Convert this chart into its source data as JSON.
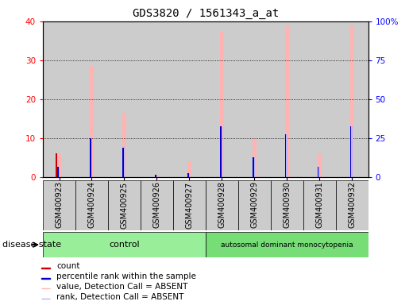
{
  "title": "GDS3820 / 1561343_a_at",
  "samples": [
    "GSM400923",
    "GSM400924",
    "GSM400925",
    "GSM400926",
    "GSM400927",
    "GSM400928",
    "GSM400929",
    "GSM400930",
    "GSM400931",
    "GSM400932"
  ],
  "count_values": [
    6,
    0,
    0,
    0,
    0,
    0,
    0,
    0,
    0,
    0
  ],
  "percentile_rank_values": [
    2.5,
    10,
    7.5,
    0.5,
    1,
    13,
    5,
    11,
    2.5,
    13
  ],
  "value_absent": [
    6,
    28.5,
    16.5,
    0.5,
    4,
    37.5,
    10,
    39,
    6,
    39
  ],
  "rank_absent": [
    2.5,
    10,
    8,
    0.5,
    1,
    13,
    5,
    11,
    2.5,
    13
  ],
  "groups": {
    "control": [
      0,
      1,
      2,
      3,
      4
    ],
    "autosomal dominant monocytopenia": [
      5,
      6,
      7,
      8,
      9
    ]
  },
  "ylim_left": [
    0,
    40
  ],
  "ylim_right": [
    0,
    100
  ],
  "yticks_left": [
    0,
    10,
    20,
    30,
    40
  ],
  "yticks_right": [
    0,
    25,
    50,
    75,
    100
  ],
  "yticklabels_right": [
    "0",
    "25",
    "50",
    "75",
    "100%"
  ],
  "color_count": "#cc0000",
  "color_percentile": "#0000cc",
  "color_value_absent": "#ffb3b3",
  "color_rank_absent": "#b3b3ff",
  "color_control_bg": "#99ee99",
  "color_disease_bg": "#77dd77",
  "color_sample_bg": "#cccccc",
  "legend_items": [
    {
      "label": "count",
      "color": "#cc0000"
    },
    {
      "label": "percentile rank within the sample",
      "color": "#0000cc"
    },
    {
      "label": "value, Detection Call = ABSENT",
      "color": "#ffb3b3"
    },
    {
      "label": "rank, Detection Call = ABSENT",
      "color": "#b3b3ff"
    }
  ]
}
